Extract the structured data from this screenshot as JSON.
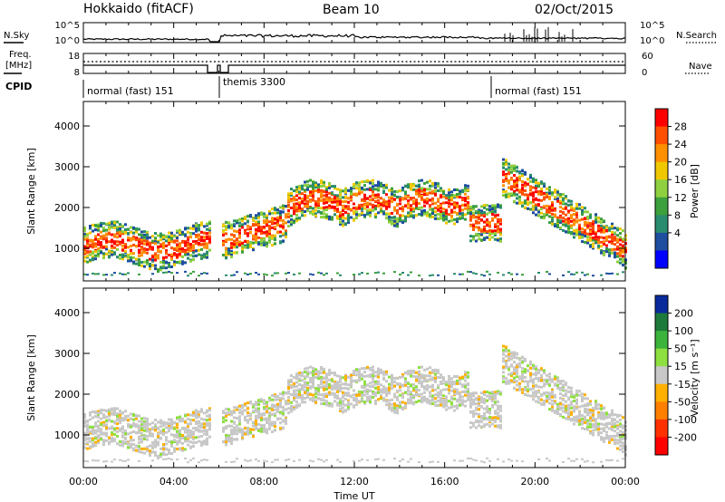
{
  "header": {
    "title": "Hokkaido (fitACF)",
    "beam": "Beam 10",
    "date": "02/Oct/2015"
  },
  "top_panels": {
    "nsky_label": "N.Sky",
    "nsky_ticks": [
      "10^5",
      "10^0"
    ],
    "nsearch_label": "N.Search",
    "nsearch_ticks": [
      "10^5",
      "10^0"
    ],
    "freq_label_line1": "Freq.",
    "freq_label_line2": "[MHz]",
    "freq_ticks": [
      "18",
      "8"
    ],
    "nave_label": "Nave",
    "nave_ticks": [
      "60",
      "0"
    ],
    "cpid_label": "CPID",
    "cpid_segments": [
      {
        "name": "normal (fast) 151",
        "start": 0.0
      },
      {
        "name": "themis 3300",
        "start": 6.05
      },
      {
        "name": "normal (fast) 151",
        "start": 18.0
      }
    ]
  },
  "chart_data": [
    {
      "type": "heatmap",
      "name": "power",
      "ylabel": "Slant Range [km]",
      "yticks": [
        "4000",
        "3000",
        "2000",
        "1000"
      ],
      "ylim": [
        200,
        4600
      ],
      "xlim": [
        0,
        24
      ],
      "colorbar_label": "Power [dB]",
      "colorbar_ticks": [
        "28",
        "24",
        "20",
        "16",
        "12",
        "8",
        "4"
      ],
      "colorbar_colors": [
        "#ff0000",
        "#ff5000",
        "#ff9000",
        "#f0c800",
        "#8fd040",
        "#3ca03c",
        "#2a8c6e",
        "#1e4ea0",
        "#0000ff"
      ]
    },
    {
      "type": "heatmap",
      "name": "velocity",
      "ylabel": "Slant Range [km]",
      "yticks": [
        "4000",
        "3000",
        "2000",
        "1000"
      ],
      "ylim": [
        200,
        4600
      ],
      "xlim": [
        0,
        24
      ],
      "colorbar_label": "Velocity [m s⁻¹]",
      "colorbar_ticks": [
        "200",
        "100",
        "50",
        "15",
        "-15",
        "-50",
        "-100",
        "-200"
      ],
      "colorbar_colors": [
        "#0a2a9c",
        "#1e7a3a",
        "#3cb43c",
        "#8ee040",
        "#c8c8c8",
        "#ffb000",
        "#ff8000",
        "#ff3000",
        "#ff0000"
      ]
    }
  ],
  "xaxis": {
    "ticks": [
      "00:00",
      "04:00",
      "08:00",
      "12:00",
      "16:00",
      "20:00",
      "00:00"
    ],
    "label": "Time UT"
  }
}
